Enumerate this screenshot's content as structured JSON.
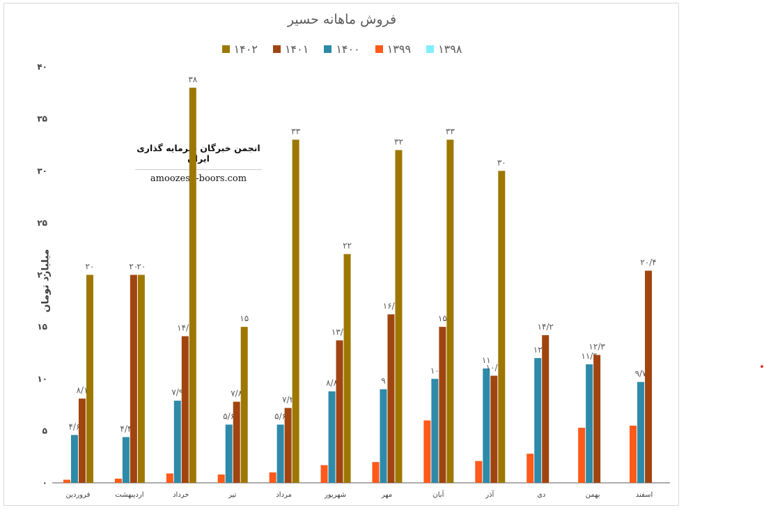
{
  "chart_data": {
    "type": "bar",
    "title": "فروش ماهانه حسیر",
    "xlabel": "",
    "ylabel": "میلیارد تومان",
    "ylim": [
      0,
      40
    ],
    "yticks": [
      "۰",
      "۵",
      "۱۰",
      "۱۵",
      "۲۰",
      "۲۵",
      "۳۰",
      "۳۵",
      "۴۰"
    ],
    "ytick_values": [
      0,
      5,
      10,
      15,
      20,
      25,
      30,
      35,
      40
    ],
    "categories": [
      "فروردین",
      "اردیبهشت",
      "خرداد",
      "تیر",
      "مرداد",
      "شهریور",
      "مهر",
      "آبان",
      "آذر",
      "دی",
      "بهمن",
      "اسفند"
    ],
    "series": [
      {
        "name": "۱۳۹۸",
        "color": "#7fefff",
        "values": [
          null,
          null,
          null,
          null,
          null,
          null,
          null,
          null,
          null,
          null,
          null,
          null
        ],
        "labels": [
          "",
          "",
          "",
          "",
          "",
          "",
          "",
          "",
          "",
          "",
          "",
          ""
        ]
      },
      {
        "name": "۱۳۹۹",
        "color": "#ff5a1a",
        "values": [
          0.3,
          0.4,
          0.9,
          0.8,
          1.0,
          1.7,
          2.0,
          6.0,
          2.1,
          2.8,
          5.3,
          5.5
        ],
        "labels": [
          "",
          "",
          "",
          "",
          "",
          "",
          "",
          "",
          "",
          "",
          "",
          ""
        ]
      },
      {
        "name": "۱۴۰۰",
        "color": "#2e8aa8",
        "values": [
          4.6,
          4.4,
          7.9,
          5.6,
          5.6,
          8.8,
          9.0,
          10.0,
          11.0,
          12.0,
          11.4,
          9.7
        ],
        "labels": [
          "۴/۶",
          "۴/۴",
          "۷/۹",
          "۵/۶",
          "۵/۶",
          "۸/۸",
          "۹",
          "۱۰",
          "۱۱",
          "۱۲",
          "۱۱/۴",
          "۹/۷"
        ]
      },
      {
        "name": "۱۴۰۱",
        "color": "#a0450f",
        "values": [
          8.1,
          20.0,
          14.1,
          7.8,
          7.2,
          13.7,
          16.2,
          15.0,
          10.3,
          14.2,
          12.3,
          20.4
        ],
        "labels": [
          "۸/۱",
          "۲۰",
          "۱۴/۱",
          "۷/۸",
          "۷/۲",
          "۱۳/۷",
          "۱۶/۲",
          "۱۵",
          "۱۰/۳",
          "۱۴/۲",
          "۱۲/۳",
          "۲۰/۴"
        ]
      },
      {
        "name": "۱۴۰۲",
        "color": "#9e7700",
        "values": [
          20.0,
          20.0,
          38.0,
          15.0,
          33.0,
          22.0,
          32.0,
          33.0,
          30.0,
          null,
          null,
          null
        ],
        "labels": [
          "۲۰",
          "۲۰",
          "۳۸",
          "۱۵",
          "۳۳",
          "۲۲",
          "۳۲",
          "۳۳",
          "۳۰",
          "",
          "",
          ""
        ]
      }
    ]
  },
  "watermark": {
    "title": "انجمن خبرگان سرمایه گذاری ایران",
    "url": "amoozesh-boors.com"
  }
}
